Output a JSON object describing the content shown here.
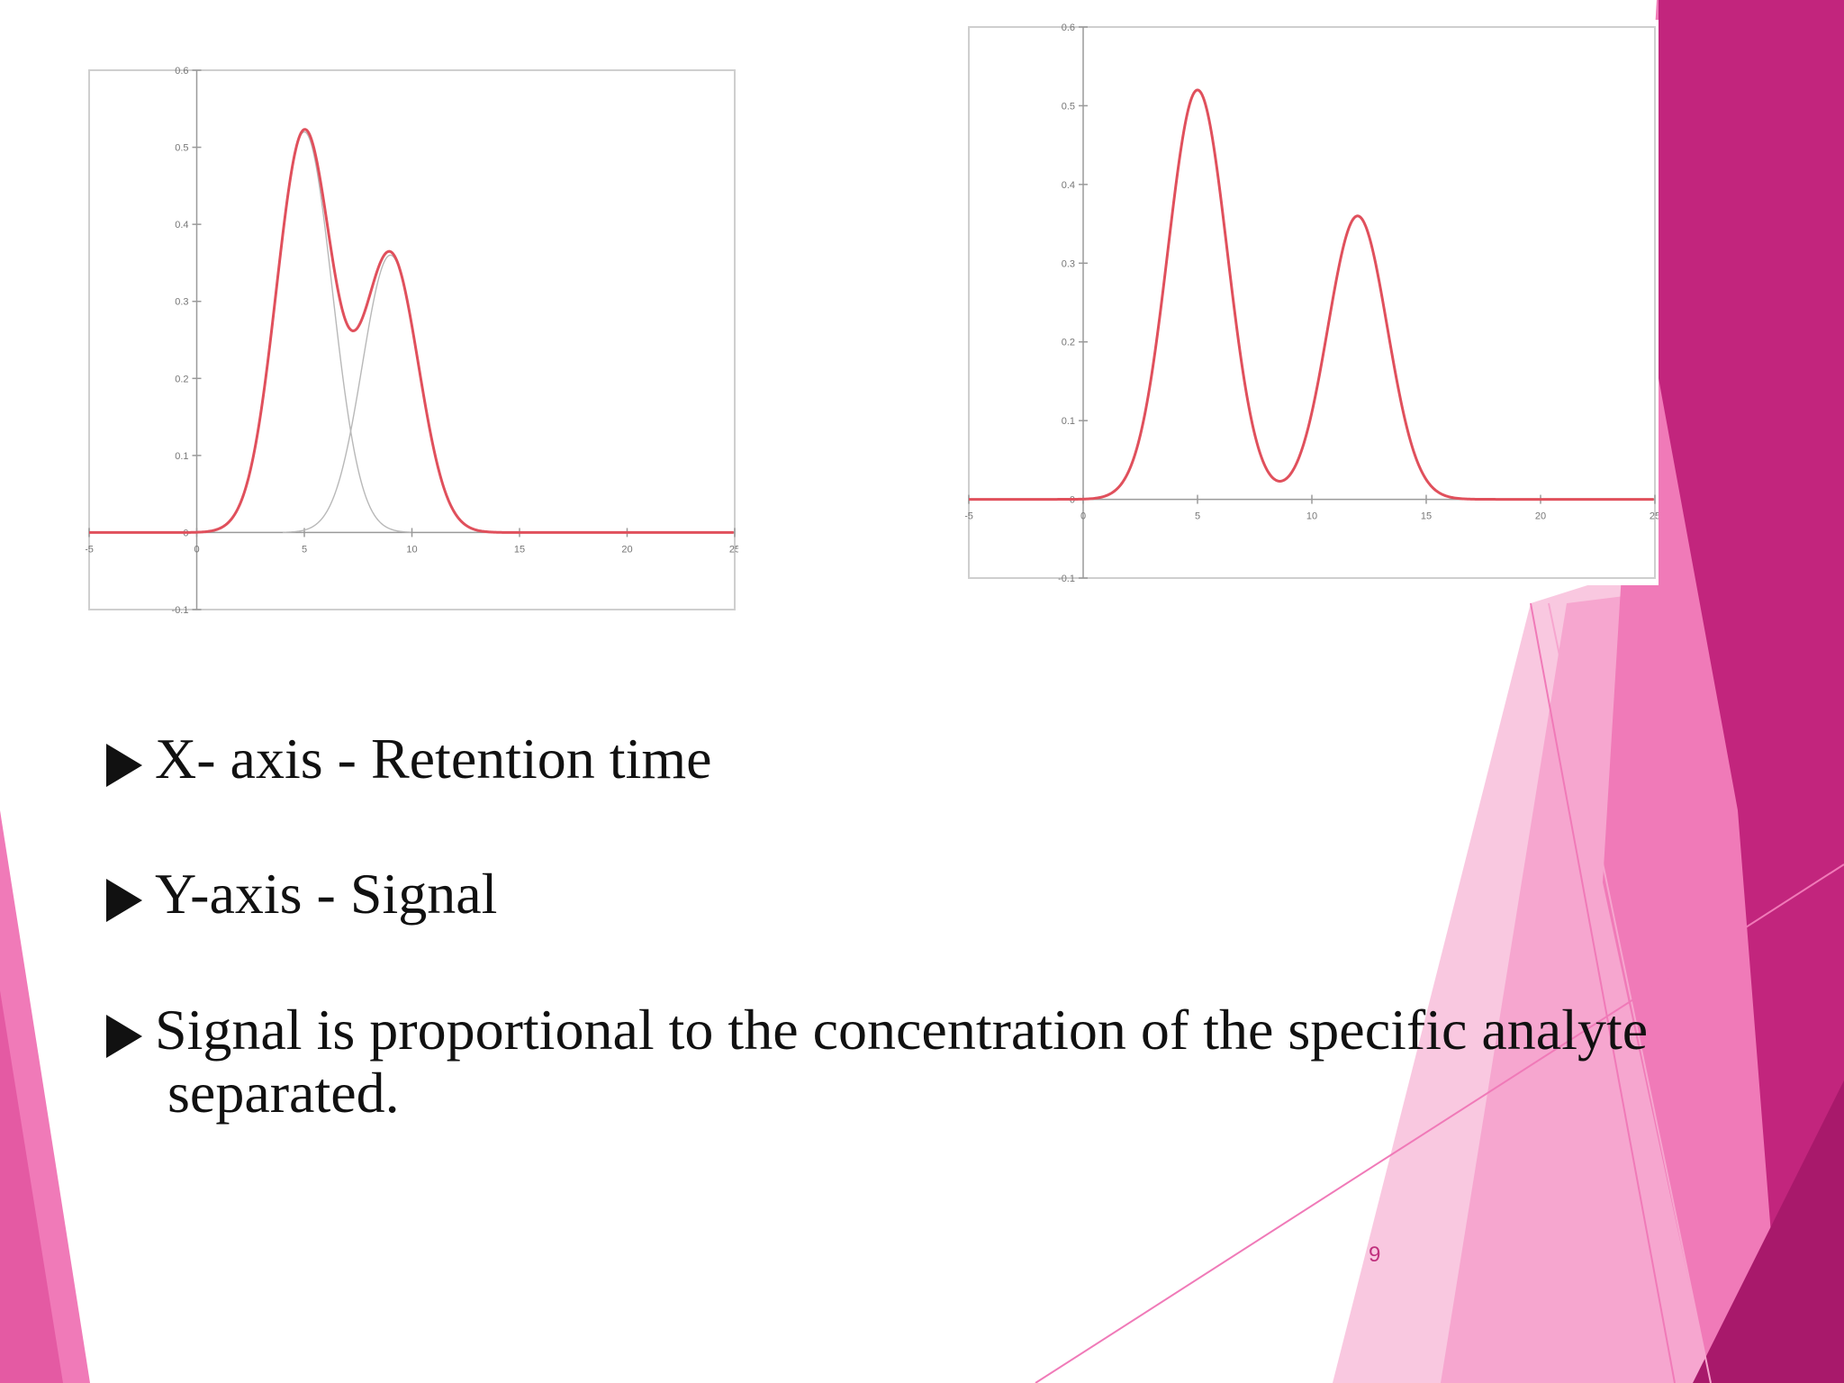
{
  "slide": {
    "number": "9",
    "colors": {
      "accent": "#c2257d",
      "accent_light": "#f07ab8",
      "accent_pale": "#f9c8e0",
      "curve": "#e0505c"
    }
  },
  "bullets": [
    {
      "text": "X- axis - Retention time"
    },
    {
      "text": "Y-axis  - Signal"
    },
    {
      "text": "Signal is proportional to the concentration of the specific analyte",
      "continuation": "separated."
    }
  ],
  "chart_data": [
    {
      "type": "line",
      "title": "",
      "xlabel": "",
      "ylabel": "",
      "xlim": [
        -5,
        25
      ],
      "ylim": [
        -0.1,
        0.6
      ],
      "x_ticks": [
        "-5",
        "0",
        "5",
        "10",
        "15",
        "20",
        "25"
      ],
      "y_ticks": [
        "0.6",
        "0.5",
        "0.4",
        "0.3",
        "0.2",
        "0.1",
        "0",
        "-0.1"
      ],
      "peaks": [
        {
          "center": 5,
          "height": 0.52,
          "width": 1.3
        },
        {
          "center": 9,
          "height": 0.36,
          "width": 1.3
        }
      ],
      "components_shown": true,
      "series": [
        {
          "values_x": [
            -5,
            0,
            2,
            3,
            4,
            5,
            6,
            7,
            8,
            9,
            10,
            11,
            12,
            25
          ],
          "values_y": [
            0,
            0,
            0.02,
            0.16,
            0.4,
            0.52,
            0.4,
            0.18,
            0.23,
            0.36,
            0.3,
            0.12,
            0.02,
            0
          ]
        }
      ]
    },
    {
      "type": "line",
      "title": "",
      "xlabel": "",
      "ylabel": "",
      "xlim": [
        -5,
        25
      ],
      "ylim": [
        -0.1,
        0.6
      ],
      "x_ticks": [
        "-5",
        "0",
        "5",
        "10",
        "15",
        "20",
        "25"
      ],
      "y_ticks": [
        "0.6",
        "0.5",
        "0.4",
        "0.3",
        "0.2",
        "0.1",
        "0",
        "-0.1"
      ],
      "peaks": [
        {
          "center": 5,
          "height": 0.52,
          "width": 1.3
        },
        {
          "center": 12,
          "height": 0.36,
          "width": 1.3
        }
      ],
      "components_shown": false,
      "series": [
        {
          "values_x": [
            -5,
            0,
            2,
            3,
            4,
            5,
            6,
            7,
            8,
            9,
            10,
            11,
            12,
            13,
            14,
            15,
            25
          ],
          "values_y": [
            0,
            0,
            0.01,
            0.12,
            0.37,
            0.52,
            0.37,
            0.12,
            0.02,
            0.01,
            0.05,
            0.2,
            0.36,
            0.2,
            0.05,
            0.0,
            0
          ]
        }
      ]
    }
  ]
}
